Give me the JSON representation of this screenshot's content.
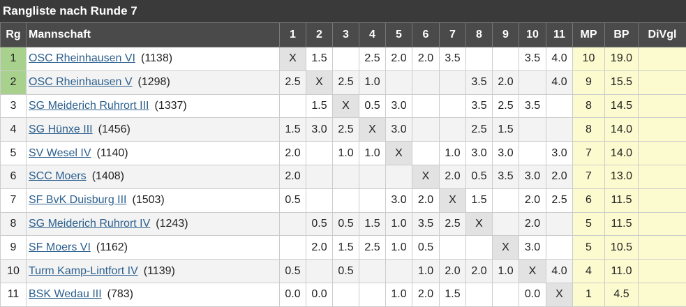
{
  "title": "Rangliste nach Runde 7",
  "table": {
    "headers": [
      "Rg",
      "Mannschaft",
      "1",
      "2",
      "3",
      "4",
      "5",
      "6",
      "7",
      "8",
      "9",
      "10",
      "11",
      "MP",
      "BP",
      "DiVgl"
    ],
    "rows": [
      {
        "rank": "1",
        "team": "OSC Rheinhausen VI",
        "rating": "(1138)",
        "results": [
          "X",
          "1.5",
          null,
          "2.5",
          "2.0",
          "2.0",
          "3.5",
          null,
          null,
          "3.5",
          "4.0"
        ],
        "mp": "10",
        "bp": "19.0"
      },
      {
        "rank": "2",
        "team": "OSC Rheinhausen V",
        "rating": "(1298)",
        "results": [
          "2.5",
          "X",
          "2.5",
          "1.0",
          null,
          null,
          null,
          "3.5",
          "2.0",
          null,
          "4.0"
        ],
        "mp": "9",
        "bp": "15.5"
      },
      {
        "rank": "3",
        "team": "SG Meiderich Ruhrort III",
        "rating": "(1337)",
        "results": [
          null,
          "1.5",
          "X",
          "0.5",
          "3.0",
          null,
          null,
          "3.5",
          "2.5",
          "3.5",
          null
        ],
        "mp": "8",
        "bp": "14.5"
      },
      {
        "rank": "4",
        "team": "SG Hünxe III",
        "rating": "(1456)",
        "results": [
          "1.5",
          "3.0",
          "2.5",
          "X",
          "3.0",
          null,
          null,
          "2.5",
          "1.5",
          null,
          null
        ],
        "mp": "8",
        "bp": "14.0"
      },
      {
        "rank": "5",
        "team": "SV Wesel IV",
        "rating": "(1140)",
        "results": [
          "2.0",
          null,
          "1.0",
          "1.0",
          "X",
          null,
          "1.0",
          "3.0",
          "3.0",
          null,
          "3.0"
        ],
        "mp": "7",
        "bp": "14.0"
      },
      {
        "rank": "6",
        "team": "SCC Moers",
        "rating": "(1408)",
        "results": [
          "2.0",
          null,
          null,
          null,
          null,
          "X",
          "2.0",
          "0.5",
          "3.5",
          "3.0",
          "2.0"
        ],
        "mp": "7",
        "bp": "13.0"
      },
      {
        "rank": "7",
        "team": "SF BvK Duisburg III",
        "rating": "(1503)",
        "results": [
          "0.5",
          null,
          null,
          null,
          "3.0",
          "2.0",
          "X",
          "1.5",
          null,
          "2.0",
          "2.5"
        ],
        "mp": "6",
        "bp": "11.5"
      },
      {
        "rank": "8",
        "team": "SG Meiderich Ruhrort IV",
        "rating": "(1243)",
        "results": [
          null,
          "0.5",
          "0.5",
          "1.5",
          "1.0",
          "3.5",
          "2.5",
          "X",
          null,
          "2.0",
          null
        ],
        "mp": "5",
        "bp": "11.5"
      },
      {
        "rank": "9",
        "team": "SF Moers VI",
        "rating": "(1162)",
        "results": [
          null,
          "2.0",
          "1.5",
          "2.5",
          "1.0",
          "0.5",
          null,
          null,
          "X",
          "3.0",
          null
        ],
        "mp": "5",
        "bp": "10.5"
      },
      {
        "rank": "10",
        "team": "Turm Kamp-Lintfort IV",
        "rating": "(1139)",
        "results": [
          "0.5",
          null,
          "0.5",
          null,
          null,
          "1.0",
          "2.0",
          "2.0",
          "1.0",
          "X",
          "4.0"
        ],
        "mp": "4",
        "bp": "11.0"
      },
      {
        "rank": "11",
        "team": "BSK Wedau III",
        "rating": "(783)",
        "results": [
          "0.0",
          "0.0",
          null,
          null,
          "1.0",
          "2.0",
          "1.5",
          null,
          null,
          "0.0",
          "X"
        ],
        "mp": "1",
        "bp": "4.5"
      }
    ]
  }
}
